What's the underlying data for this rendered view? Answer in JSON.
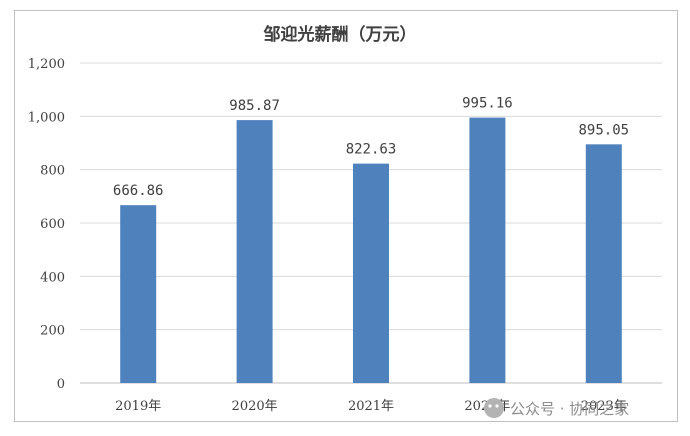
{
  "chart_data": {
    "type": "bar",
    "title": "邹迎光薪酬（万元）",
    "categories": [
      "2019年",
      "2020年",
      "2021年",
      "2022年",
      "2023年"
    ],
    "values": [
      666.86,
      985.87,
      822.63,
      995.16,
      895.05
    ],
    "value_labels": [
      "666.86",
      "985.87",
      "822.63",
      "995.16",
      "895.05"
    ],
    "ylim": [
      0,
      1200
    ],
    "yticks": [
      0,
      200,
      400,
      600,
      800,
      1000,
      1200
    ],
    "ytick_labels": [
      "0",
      "200",
      "400",
      "600",
      "800",
      "1,000",
      "1,200"
    ],
    "grid": true,
    "bar_color": "#4f81bd",
    "grid_color": "#d9d9d9"
  },
  "watermark": {
    "text": "公众号 · 协同之家",
    "icon": "wechat-icon"
  }
}
